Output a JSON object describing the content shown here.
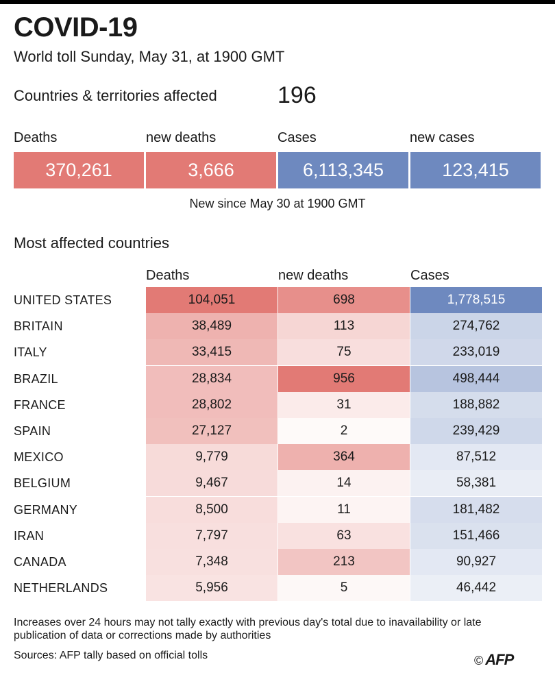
{
  "header": {
    "title": "COVID-19",
    "subtitle": "World toll Sunday, May 31, at 1900 GMT",
    "affected_label": "Countries & territories affected",
    "affected_value": "196"
  },
  "summary": {
    "labels": [
      "Deaths",
      "new deaths",
      "Cases",
      "new cases"
    ],
    "values": [
      "370,261",
      "3,666",
      "6,113,345",
      "123,415"
    ],
    "note": "New since  May 30 at 1900 GMT"
  },
  "colors": {
    "deaths": "#e27a75",
    "cases": "#6e89bf"
  },
  "table": {
    "section_title": "Most affected countries",
    "headers": [
      "Deaths",
      "new deaths",
      "Cases"
    ]
  },
  "chart_data": {
    "type": "table",
    "title": "Most affected countries",
    "columns": [
      "Deaths",
      "new deaths",
      "Cases"
    ],
    "rows": [
      {
        "country": "UNITED STATES",
        "deaths": 104051,
        "new_deaths": 698,
        "cases": 1778515
      },
      {
        "country": "BRITAIN",
        "deaths": 38489,
        "new_deaths": 113,
        "cases": 274762
      },
      {
        "country": "ITALY",
        "deaths": 33415,
        "new_deaths": 75,
        "cases": 233019
      },
      {
        "country": "BRAZIL",
        "deaths": 28834,
        "new_deaths": 956,
        "cases": 498444
      },
      {
        "country": "FRANCE",
        "deaths": 28802,
        "new_deaths": 31,
        "cases": 188882
      },
      {
        "country": "SPAIN",
        "deaths": 27127,
        "new_deaths": 2,
        "cases": 239429
      },
      {
        "country": "MEXICO",
        "deaths": 9779,
        "new_deaths": 364,
        "cases": 87512
      },
      {
        "country": "BELGIUM",
        "deaths": 9467,
        "new_deaths": 14,
        "cases": 58381
      },
      {
        "country": "GERMANY",
        "deaths": 8500,
        "new_deaths": 11,
        "cases": 181482
      },
      {
        "country": "IRAN",
        "deaths": 7797,
        "new_deaths": 63,
        "cases": 151466
      },
      {
        "country": "CANADA",
        "deaths": 7348,
        "new_deaths": 213,
        "cases": 90927
      },
      {
        "country": "NETHERLANDS",
        "deaths": 5956,
        "new_deaths": 5,
        "cases": 46442
      }
    ]
  },
  "footer": {
    "footnote": "Increases over 24 hours may not tally exactly with previous day's total due to inavailability or late publication of data or corrections made by authorities",
    "sources": "Sources: AFP tally based on official tolls",
    "copyright_symbol": "©",
    "logo_text": "AFP"
  }
}
